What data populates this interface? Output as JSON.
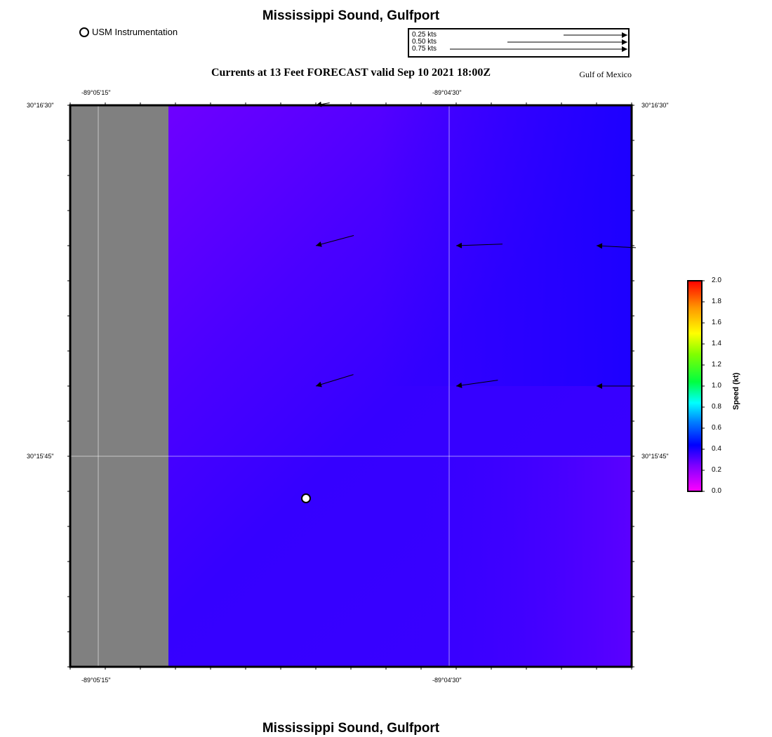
{
  "title": "Mississippi Sound, Gulfport",
  "footer_title": "Mississippi Sound, Gulfport",
  "subtitle": "Currents at 13 Feet FORECAST valid Sep 10 2021 18:00Z",
  "region_label": "Gulf of Mexico",
  "legend": {
    "instrument_label": "USM Instrumentation"
  },
  "vector_scale": [
    {
      "label": "0.25 kts",
      "speed": 0.25
    },
    {
      "label": "0.50 kts",
      "speed": 0.5
    },
    {
      "label": "0.75 kts",
      "speed": 0.75
    }
  ],
  "axes": {
    "x_ticks": [
      "-89°05'15\"",
      "-89°04'30\""
    ],
    "y_ticks": [
      "30°16'30\"",
      "30°15'45\""
    ]
  },
  "colorbar": {
    "title": "Speed (kt)",
    "ticks": [
      "0.0",
      "0.2",
      "0.4",
      "0.6",
      "0.8",
      "1.0",
      "1.2",
      "1.4",
      "1.6",
      "1.8",
      "2.0"
    ],
    "min": 0.0,
    "max": 2.0
  },
  "colors": {
    "land": "#808080",
    "water_violet": "#7a00ff",
    "water_blue": "#3300ff",
    "water_deep_blue": "#1a00ff",
    "station_fill": "#ffffff"
  },
  "current_vectors": [
    {
      "row": 0,
      "col": 1,
      "speed_kt": 0.1,
      "direction_deg": 260
    },
    {
      "row": 1,
      "col": 1,
      "speed_kt": 0.28,
      "direction_deg": 255
    },
    {
      "row": 1,
      "col": 2,
      "speed_kt": 0.33,
      "direction_deg": 268
    },
    {
      "row": 1,
      "col": 3,
      "speed_kt": 0.4,
      "direction_deg": 273
    },
    {
      "row": 2,
      "col": 1,
      "speed_kt": 0.28,
      "direction_deg": 253
    },
    {
      "row": 2,
      "col": 2,
      "speed_kt": 0.3,
      "direction_deg": 262
    },
    {
      "row": 2,
      "col": 3,
      "speed_kt": 0.25,
      "direction_deg": 270
    }
  ]
}
